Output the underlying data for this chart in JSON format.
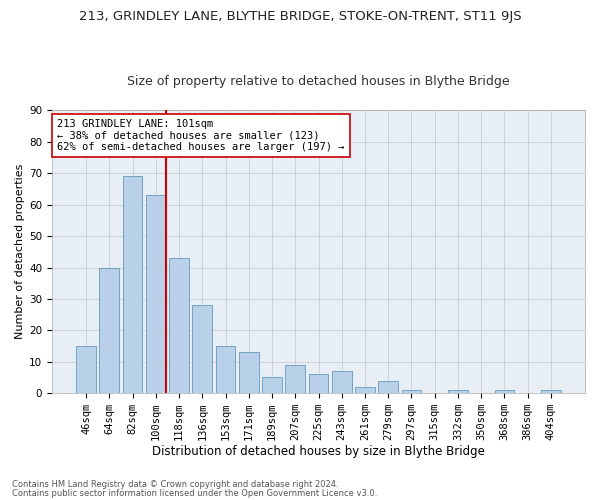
{
  "title1": "213, GRINDLEY LANE, BLYTHE BRIDGE, STOKE-ON-TRENT, ST11 9JS",
  "title2": "Size of property relative to detached houses in Blythe Bridge",
  "xlabel": "Distribution of detached houses by size in Blythe Bridge",
  "ylabel": "Number of detached properties",
  "footnote1": "Contains HM Land Registry data © Crown copyright and database right 2024.",
  "footnote2": "Contains public sector information licensed under the Open Government Licence v3.0.",
  "categories": [
    "46sqm",
    "64sqm",
    "82sqm",
    "100sqm",
    "118sqm",
    "136sqm",
    "153sqm",
    "171sqm",
    "189sqm",
    "207sqm",
    "225sqm",
    "243sqm",
    "261sqm",
    "279sqm",
    "297sqm",
    "315sqm",
    "332sqm",
    "350sqm",
    "368sqm",
    "386sqm",
    "404sqm"
  ],
  "values": [
    15,
    40,
    69,
    63,
    43,
    28,
    15,
    13,
    5,
    9,
    6,
    7,
    2,
    4,
    1,
    0,
    1,
    0,
    1,
    0,
    1
  ],
  "bar_color": "#b8d0e8",
  "bar_edge_color": "#6699bb",
  "vline_index": 3,
  "vline_color": "#cc0000",
  "annotation_line1": "213 GRINDLEY LANE: 101sqm",
  "annotation_line2": "← 38% of detached houses are smaller (123)",
  "annotation_line3": "62% of semi-detached houses are larger (197) →",
  "annotation_box_color": "#ffffff",
  "annotation_box_edge": "#cc0000",
  "ylim": [
    0,
    90
  ],
  "yticks": [
    0,
    10,
    20,
    30,
    40,
    50,
    60,
    70,
    80,
    90
  ],
  "grid_color": "#cccccc",
  "bg_color": "#e8eef5",
  "title1_fontsize": 9.5,
  "title2_fontsize": 9,
  "xlabel_fontsize": 8.5,
  "ylabel_fontsize": 8,
  "tick_fontsize": 7.5,
  "annot_fontsize": 7.5,
  "footnote_fontsize": 6
}
